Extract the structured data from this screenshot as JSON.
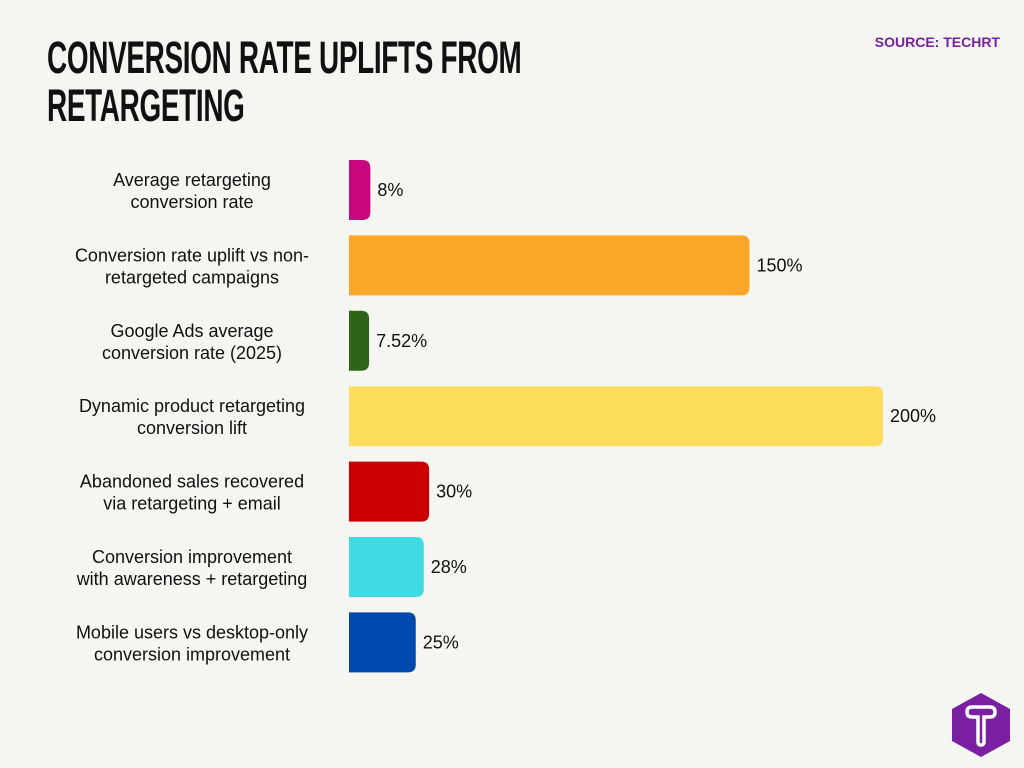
{
  "chart_data": {
    "type": "bar",
    "orientation": "horizontal",
    "title": "CONVERSION RATE UPLIFTS FROM RETARGETING",
    "source": "SOURCE: TECHRT",
    "categories": [
      "Average retargeting conversion rate",
      "Conversion rate uplift vs non-retargeted campaigns",
      "Google Ads average conversion rate (2025)",
      "Dynamic product retargeting conversion lift",
      "Abandoned sales recovered via retargeting + email",
      "Conversion improvement with awareness + retargeting",
      "Mobile users vs desktop-only conversion improvement"
    ],
    "category_lines": [
      [
        "Average retargeting",
        "conversion rate"
      ],
      [
        "Conversion rate uplift vs non-",
        "retargeted campaigns"
      ],
      [
        "Google Ads average",
        "conversion rate (2025)"
      ],
      [
        "Dynamic product retargeting",
        "conversion lift"
      ],
      [
        "Abandoned sales recovered",
        "via retargeting + email"
      ],
      [
        "Conversion improvement",
        "with awareness + retargeting"
      ],
      [
        "Mobile users vs desktop-only",
        "conversion improvement"
      ]
    ],
    "values": [
      8,
      150,
      7.52,
      200,
      30,
      28,
      25
    ],
    "data_labels": [
      "8%",
      "150%",
      "7.52%",
      "200%",
      "30%",
      "28%",
      "25%"
    ],
    "colors": [
      "#c8077f",
      "#fba626",
      "#2e6417",
      "#fedc5c",
      "#cc0000",
      "#3edce2",
      "#0049ae"
    ],
    "xlim": [
      0,
      200
    ],
    "grid": false,
    "legend": "none"
  },
  "logo": {
    "letter": "T",
    "color": "#7b1fa2"
  }
}
